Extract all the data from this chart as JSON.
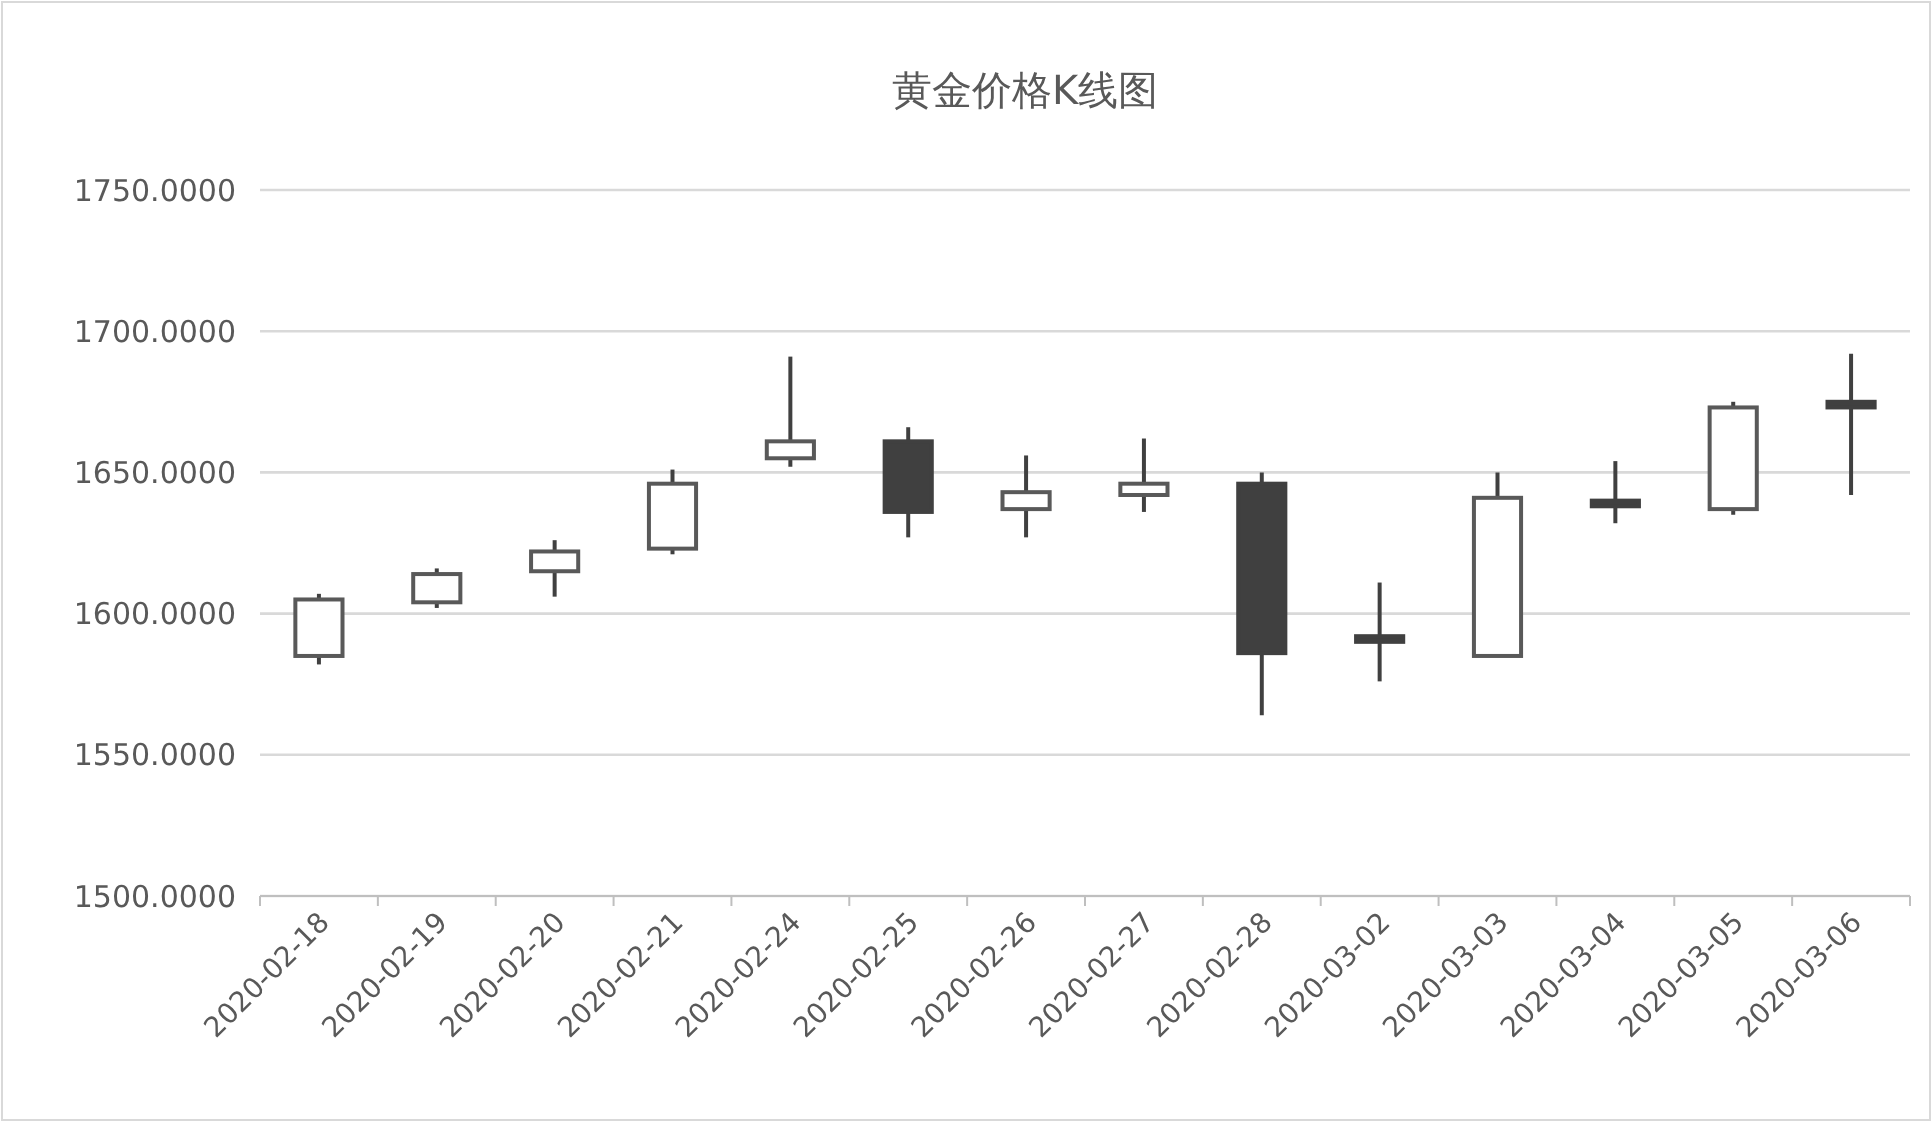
{
  "chart_data": {
    "type": "candlestick",
    "title": "黄金价格K线图",
    "categories": [
      "2020-02-18",
      "2020-02-19",
      "2020-02-20",
      "2020-02-21",
      "2020-02-24",
      "2020-02-25",
      "2020-02-26",
      "2020-02-27",
      "2020-02-28",
      "2020-03-02",
      "2020-03-03",
      "2020-03-04",
      "2020-03-05",
      "2020-03-06"
    ],
    "ohlc": [
      [
        1585,
        1607,
        1582,
        1605
      ],
      [
        1604,
        1616,
        1602,
        1614
      ],
      [
        1615,
        1626,
        1606,
        1622
      ],
      [
        1623,
        1651,
        1621,
        1646
      ],
      [
        1655,
        1691,
        1652,
        1661
      ],
      [
        1661,
        1666,
        1627,
        1636
      ],
      [
        1637,
        1656,
        1627,
        1643
      ],
      [
        1642,
        1662,
        1636,
        1646
      ],
      [
        1646,
        1650,
        1564,
        1586
      ],
      [
        1592,
        1611,
        1576,
        1590
      ],
      [
        1585,
        1650,
        1585,
        1641
      ],
      [
        1640,
        1654,
        1632,
        1638
      ],
      [
        1637,
        1675,
        1635,
        1673
      ],
      [
        1675,
        1692,
        1642,
        1673
      ]
    ],
    "ylim": [
      1500,
      1750
    ],
    "yticks": [
      {
        "value": 1500,
        "label": "1500.0000"
      },
      {
        "value": 1550,
        "label": "1550.0000"
      },
      {
        "value": 1600,
        "label": "1600.0000"
      },
      {
        "value": 1650,
        "label": "1650.0000"
      },
      {
        "value": 1700,
        "label": "1700.0000"
      },
      {
        "value": 1750,
        "label": "1750.0000"
      }
    ],
    "grid": "y"
  }
}
